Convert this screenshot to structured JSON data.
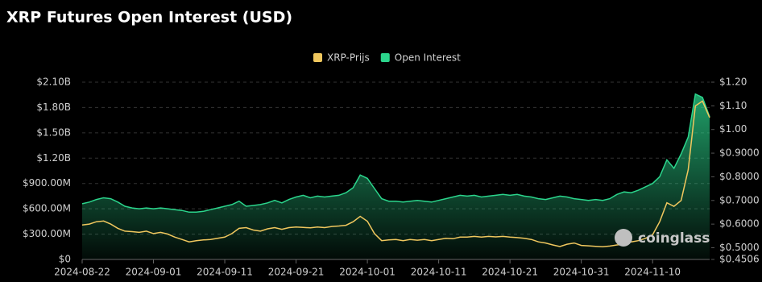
{
  "chart_data": {
    "type": "line",
    "title": "XRP Futures Open Interest (USD)",
    "watermark": "coinglass",
    "grid": true,
    "x": [
      "2024-08-22",
      "2024-08-23",
      "2024-08-24",
      "2024-08-25",
      "2024-08-26",
      "2024-08-27",
      "2024-08-28",
      "2024-08-29",
      "2024-08-30",
      "2024-08-31",
      "2024-09-01",
      "2024-09-02",
      "2024-09-03",
      "2024-09-04",
      "2024-09-05",
      "2024-09-06",
      "2024-09-07",
      "2024-09-08",
      "2024-09-09",
      "2024-09-10",
      "2024-09-11",
      "2024-09-12",
      "2024-09-13",
      "2024-09-14",
      "2024-09-15",
      "2024-09-16",
      "2024-09-17",
      "2024-09-18",
      "2024-09-19",
      "2024-09-20",
      "2024-09-21",
      "2024-09-22",
      "2024-09-23",
      "2024-09-24",
      "2024-09-25",
      "2024-09-26",
      "2024-09-27",
      "2024-09-28",
      "2024-09-29",
      "2024-09-30",
      "2024-10-01",
      "2024-10-02",
      "2024-10-03",
      "2024-10-04",
      "2024-10-05",
      "2024-10-06",
      "2024-10-07",
      "2024-10-08",
      "2024-10-09",
      "2024-10-10",
      "2024-10-11",
      "2024-10-12",
      "2024-10-13",
      "2024-10-14",
      "2024-10-15",
      "2024-10-16",
      "2024-10-17",
      "2024-10-18",
      "2024-10-19",
      "2024-10-20",
      "2024-10-21",
      "2024-10-22",
      "2024-10-23",
      "2024-10-24",
      "2024-10-25",
      "2024-10-26",
      "2024-10-27",
      "2024-10-28",
      "2024-10-29",
      "2024-10-30",
      "2024-10-31",
      "2024-11-01",
      "2024-11-02",
      "2024-11-03",
      "2024-11-04",
      "2024-11-05",
      "2024-11-06",
      "2024-11-07",
      "2024-11-08",
      "2024-11-09",
      "2024-11-10",
      "2024-11-11",
      "2024-11-12",
      "2024-11-13",
      "2024-11-14",
      "2024-11-15",
      "2024-11-16",
      "2024-11-17",
      "2024-11-18"
    ],
    "xticks": [
      "2024-08-22",
      "2024-09-01",
      "2024-09-11",
      "2024-09-21",
      "2024-10-01",
      "2024-10-11",
      "2024-10-21",
      "2024-10-31",
      "2024-11-10"
    ],
    "series": [
      {
        "name": "XRP-Prijs",
        "color": "#f0c75e",
        "axis": "y2",
        "fill": false,
        "values": [
          0.596,
          0.6,
          0.61,
          0.613,
          0.6,
          0.582,
          0.57,
          0.568,
          0.565,
          0.57,
          0.56,
          0.565,
          0.558,
          0.545,
          0.535,
          0.525,
          0.53,
          0.533,
          0.535,
          0.54,
          0.545,
          0.56,
          0.582,
          0.585,
          0.575,
          0.57,
          0.58,
          0.585,
          0.578,
          0.585,
          0.588,
          0.586,
          0.584,
          0.588,
          0.585,
          0.59,
          0.592,
          0.595,
          0.61,
          0.633,
          0.612,
          0.56,
          0.53,
          0.533,
          0.535,
          0.53,
          0.535,
          0.532,
          0.535,
          0.53,
          0.535,
          0.54,
          0.538,
          0.545,
          0.545,
          0.548,
          0.545,
          0.548,
          0.546,
          0.548,
          0.545,
          0.543,
          0.54,
          0.535,
          0.525,
          0.52,
          0.512,
          0.505,
          0.515,
          0.52,
          0.51,
          0.508,
          0.506,
          0.504,
          0.507,
          0.512,
          0.515,
          0.525,
          0.53,
          0.54,
          0.555,
          0.61,
          0.69,
          0.675,
          0.7,
          0.83,
          1.1,
          1.12,
          1.05
        ]
      },
      {
        "name": "Open Interest",
        "color": "#2bd58c",
        "axis": "y",
        "fill": true,
        "values": [
          660000000,
          680000000,
          710000000,
          730000000,
          720000000,
          680000000,
          630000000,
          610000000,
          600000000,
          610000000,
          600000000,
          610000000,
          600000000,
          590000000,
          580000000,
          560000000,
          560000000,
          570000000,
          590000000,
          610000000,
          630000000,
          650000000,
          690000000,
          630000000,
          640000000,
          650000000,
          670000000,
          700000000,
          670000000,
          710000000,
          740000000,
          760000000,
          730000000,
          750000000,
          740000000,
          750000000,
          760000000,
          790000000,
          850000000,
          1000000000,
          960000000,
          840000000,
          720000000,
          690000000,
          690000000,
          680000000,
          690000000,
          700000000,
          690000000,
          680000000,
          700000000,
          720000000,
          740000000,
          760000000,
          750000000,
          760000000,
          740000000,
          750000000,
          760000000,
          770000000,
          760000000,
          770000000,
          750000000,
          740000000,
          720000000,
          710000000,
          730000000,
          750000000,
          740000000,
          720000000,
          710000000,
          700000000,
          710000000,
          700000000,
          720000000,
          770000000,
          800000000,
          790000000,
          820000000,
          860000000,
          900000000,
          980000000,
          1180000000,
          1080000000,
          1250000000,
          1450000000,
          1960000000,
          1920000000,
          1690000000
        ]
      }
    ],
    "ylim": [
      0,
      2100000000
    ],
    "yticks": [
      {
        "value": 0,
        "label": "$0"
      },
      {
        "value": 300000000,
        "label": "$300.00M"
      },
      {
        "value": 600000000,
        "label": "$600.00M"
      },
      {
        "value": 900000000,
        "label": "$900.00M"
      },
      {
        "value": 1200000000,
        "label": "$1.20B"
      },
      {
        "value": 1500000000,
        "label": "$1.50B"
      },
      {
        "value": 1800000000,
        "label": "$1.80B"
      },
      {
        "value": 2100000000,
        "label": "$2.10B"
      }
    ],
    "y2lim": [
      0.4506,
      1.2
    ],
    "y2ticks": [
      {
        "value": 0.4506,
        "label": "$0.4506"
      },
      {
        "value": 0.5,
        "label": "$0.5000"
      },
      {
        "value": 0.6,
        "label": "$0.6000"
      },
      {
        "value": 0.7,
        "label": "$0.7000"
      },
      {
        "value": 0.8,
        "label": "$0.8000"
      },
      {
        "value": 0.9,
        "label": "$0.9000"
      },
      {
        "value": 1.0,
        "label": "$1.00"
      },
      {
        "value": 1.1,
        "label": "$1.10"
      },
      {
        "value": 1.2,
        "label": "$1.20"
      }
    ]
  }
}
